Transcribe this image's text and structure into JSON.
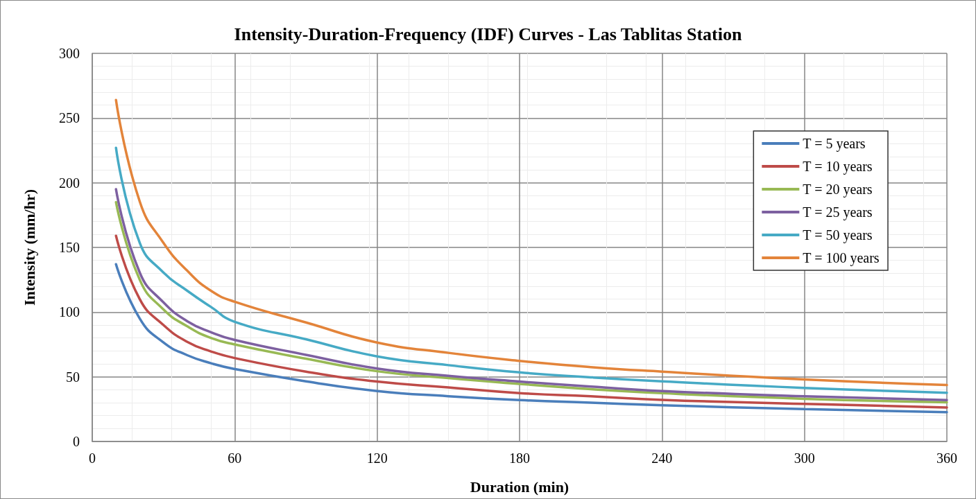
{
  "chart_data": {
    "type": "line",
    "title": "Intensity-Duration-Frequency (IDF) Curves - Las Tablitas Station",
    "xlabel": "Duration (min)",
    "ylabel": "Intensity (mm/hr)",
    "x": [
      10,
      20,
      30,
      40,
      50,
      60,
      90,
      120,
      150,
      180,
      210,
      240,
      300,
      360
    ],
    "series": [
      {
        "name": "T = 5 years",
        "color": "#4a7ebb",
        "values": [
          137,
          95,
          76.5,
          66.7,
          60.5,
          56,
          46.5,
          39,
          35,
          32,
          30,
          28,
          25,
          22.6
        ]
      },
      {
        "name": "T = 10 years",
        "color": "#be4b48",
        "values": [
          159,
          110,
          90,
          77,
          69.6,
          64.5,
          54,
          46.3,
          41.8,
          37.4,
          35,
          32.2,
          29,
          26.3
        ]
      },
      {
        "name": "T = 20 years",
        "color": "#98b954",
        "values": [
          185,
          125,
          102,
          89,
          80,
          75,
          64,
          54.3,
          49,
          44.5,
          40.4,
          37.3,
          33,
          30.3
        ]
      },
      {
        "name": "T = 25 years",
        "color": "#7d60a0",
        "values": [
          195,
          130.6,
          107.5,
          93,
          84.5,
          78.5,
          67,
          56.4,
          50.7,
          46.3,
          42.5,
          39,
          35,
          32
        ]
      },
      {
        "name": "T = 50 years",
        "color": "#46aac5",
        "values": [
          227,
          153.5,
          130.6,
          116.5,
          104,
          92.5,
          79,
          65.8,
          59,
          53.4,
          49.6,
          46.5,
          41.4,
          37.7
        ]
      },
      {
        "name": "T = 100 years",
        "color": "#e3843a",
        "values": [
          264,
          185.5,
          153.5,
          132,
          116.5,
          108,
          92,
          76.5,
          68.5,
          62.3,
          57.5,
          54,
          48,
          43.6
        ]
      }
    ],
    "xlim": [
      0,
      360
    ],
    "xticks": [
      0,
      60,
      120,
      180,
      240,
      300,
      360
    ],
    "ylim": [
      0,
      300
    ],
    "yticks": [
      0,
      50,
      100,
      150,
      200,
      250,
      300
    ],
    "grid": true,
    "legend": "right",
    "marker": "none",
    "line_style": "solid"
  }
}
